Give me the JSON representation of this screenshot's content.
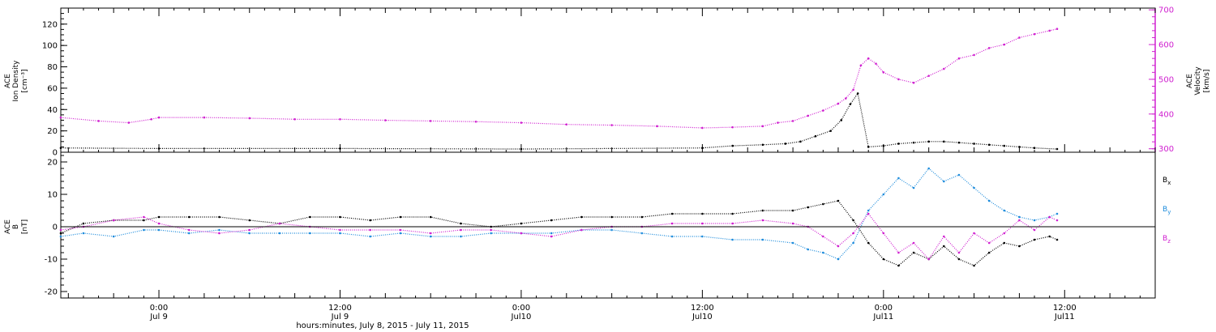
{
  "chart_data": [
    {
      "type": "scatter",
      "panel": "top",
      "title": "",
      "ylabel_left": [
        "ACE",
        "Ion Density",
        "[cm⁻³]"
      ],
      "ylabel_right": [
        "ACE",
        "Velocity",
        "[km/s]"
      ],
      "ylim_left": [
        0,
        135
      ],
      "ylim_right": [
        290,
        705
      ],
      "yticks_left": [
        "0",
        "20",
        "40",
        "60",
        "80",
        "100",
        "120"
      ],
      "yticks_right": [
        "300",
        "400",
        "500",
        "600",
        "700"
      ],
      "colors": {
        "density": "#000000",
        "velocity": "#d020d0"
      },
      "series": [
        {
          "name": "",
          "axis": "left",
          "color": "#000000",
          "x": [
            -6.5,
            0,
            12,
            24,
            36,
            38,
            40,
            41.5,
            42.5,
            43.5,
            44.5,
            45.2,
            45.8,
            46.3,
            47,
            48,
            49,
            50,
            51,
            52,
            53,
            54,
            55,
            56,
            57,
            58,
            59.5
          ],
          "y": [
            4,
            3.5,
            3.5,
            3,
            4,
            6,
            7,
            8,
            10,
            15,
            20,
            30,
            45,
            55,
            5,
            6,
            8,
            9,
            10,
            10,
            9,
            8,
            7,
            6,
            5,
            4,
            3
          ]
        },
        {
          "name": "",
          "axis": "right",
          "color": "#d020d0",
          "x": [
            -6.5,
            -4,
            -2,
            -0.5,
            0,
            3,
            6,
            9,
            12,
            15,
            18,
            21,
            24,
            27,
            30,
            33,
            36,
            38,
            40,
            41,
            42,
            43,
            44,
            45,
            45.5,
            46,
            46.5,
            47,
            47.5,
            48,
            49,
            50,
            51,
            52,
            53,
            54,
            55,
            56,
            57,
            58,
            59,
            59.5
          ],
          "y": [
            390,
            380,
            375,
            385,
            390,
            390,
            388,
            385,
            385,
            382,
            380,
            378,
            375,
            370,
            368,
            365,
            360,
            362,
            365,
            375,
            380,
            395,
            410,
            430,
            445,
            470,
            540,
            560,
            545,
            520,
            500,
            490,
            510,
            530,
            560,
            570,
            590,
            600,
            620,
            630,
            640,
            645
          ]
        }
      ]
    },
    {
      "type": "scatter",
      "panel": "bottom",
      "title": "",
      "ylabel": [
        "ACE",
        "B",
        "[nT]"
      ],
      "ylim": [
        -22,
        23
      ],
      "yticks": [
        "-20",
        "-10",
        "0",
        "10",
        "20"
      ],
      "zero_line": true,
      "legend_position": "right",
      "legend": [
        {
          "label": "Bx",
          "main": "B",
          "sub": "x",
          "color": "#000000"
        },
        {
          "label": "By",
          "main": "B",
          "sub": "y",
          "color": "#1e8cdc"
        },
        {
          "label": "Bz",
          "main": "B",
          "sub": "z",
          "color": "#d020d0"
        }
      ],
      "series": [
        {
          "name": "Bx",
          "color": "#000000",
          "x": [
            -6.5,
            -5,
            -3,
            -1,
            0,
            2,
            4,
            6,
            8,
            10,
            12,
            14,
            16,
            18,
            20,
            22,
            24,
            26,
            28,
            30,
            32,
            34,
            36,
            38,
            40,
            42,
            43,
            44,
            45,
            46,
            47,
            48,
            49,
            50,
            51,
            52,
            53,
            54,
            55,
            56,
            57,
            58,
            59,
            59.5
          ],
          "y": [
            -2,
            1,
            2,
            2,
            3,
            3,
            3,
            2,
            1,
            3,
            3,
            2,
            3,
            3,
            1,
            0,
            1,
            2,
            3,
            3,
            3,
            4,
            4,
            4,
            5,
            5,
            6,
            7,
            8,
            2,
            -5,
            -10,
            -12,
            -8,
            -10,
            -6,
            -10,
            -12,
            -8,
            -5,
            -6,
            -4,
            -3,
            -4
          ]
        },
        {
          "name": "By",
          "color": "#1e8cdc",
          "x": [
            -6.5,
            -5,
            -3,
            -1,
            0,
            2,
            4,
            6,
            8,
            10,
            12,
            14,
            16,
            18,
            20,
            22,
            24,
            26,
            28,
            30,
            32,
            34,
            36,
            38,
            40,
            42,
            43,
            44,
            45,
            46,
            47,
            48,
            49,
            50,
            51,
            52,
            53,
            54,
            55,
            56,
            57,
            58,
            59,
            59.5
          ],
          "y": [
            -3,
            -2,
            -3,
            -1,
            -1,
            -2,
            -1,
            -2,
            -2,
            -2,
            -2,
            -3,
            -2,
            -3,
            -3,
            -2,
            -2,
            -2,
            -1,
            -1,
            -2,
            -3,
            -3,
            -4,
            -4,
            -5,
            -7,
            -8,
            -10,
            -5,
            5,
            10,
            15,
            12,
            18,
            14,
            16,
            12,
            8,
            5,
            3,
            2,
            3,
            4
          ]
        },
        {
          "name": "Bz",
          "color": "#d020d0",
          "x": [
            -6.5,
            -5,
            -3,
            -1,
            0,
            2,
            4,
            6,
            8,
            10,
            12,
            14,
            16,
            18,
            20,
            22,
            24,
            26,
            28,
            30,
            32,
            34,
            36,
            38,
            40,
            42,
            43,
            44,
            45,
            46,
            47,
            48,
            49,
            50,
            51,
            52,
            53,
            54,
            55,
            56,
            57,
            58,
            59,
            59.5
          ],
          "y": [
            -1,
            0,
            2,
            3,
            1,
            -1,
            -2,
            -1,
            1,
            0,
            -1,
            -1,
            -1,
            -2,
            -1,
            -1,
            -2,
            -3,
            -1,
            0,
            0,
            1,
            1,
            1,
            2,
            1,
            0,
            -3,
            -6,
            -2,
            4,
            -2,
            -8,
            -5,
            -10,
            -3,
            -8,
            -2,
            -5,
            -2,
            2,
            -1,
            3,
            2
          ]
        }
      ]
    }
  ],
  "x_axis": {
    "xlim": [
      -6.5,
      66
    ],
    "ticks": [
      {
        "x": 0,
        "top": "0:00",
        "bottom": "Jul 9"
      },
      {
        "x": 12,
        "top": "12:00",
        "bottom": "Jul 9"
      },
      {
        "x": 24,
        "top": "0:00",
        "bottom": "Jul10"
      },
      {
        "x": 36,
        "top": "12:00",
        "bottom": "Jul10"
      },
      {
        "x": 48,
        "top": "0:00",
        "bottom": "Jul11"
      },
      {
        "x": 60,
        "top": "12:00",
        "bottom": "Jul11"
      }
    ],
    "xlabel": "hours:minutes, July  8, 2015 - July 11, 2015"
  }
}
